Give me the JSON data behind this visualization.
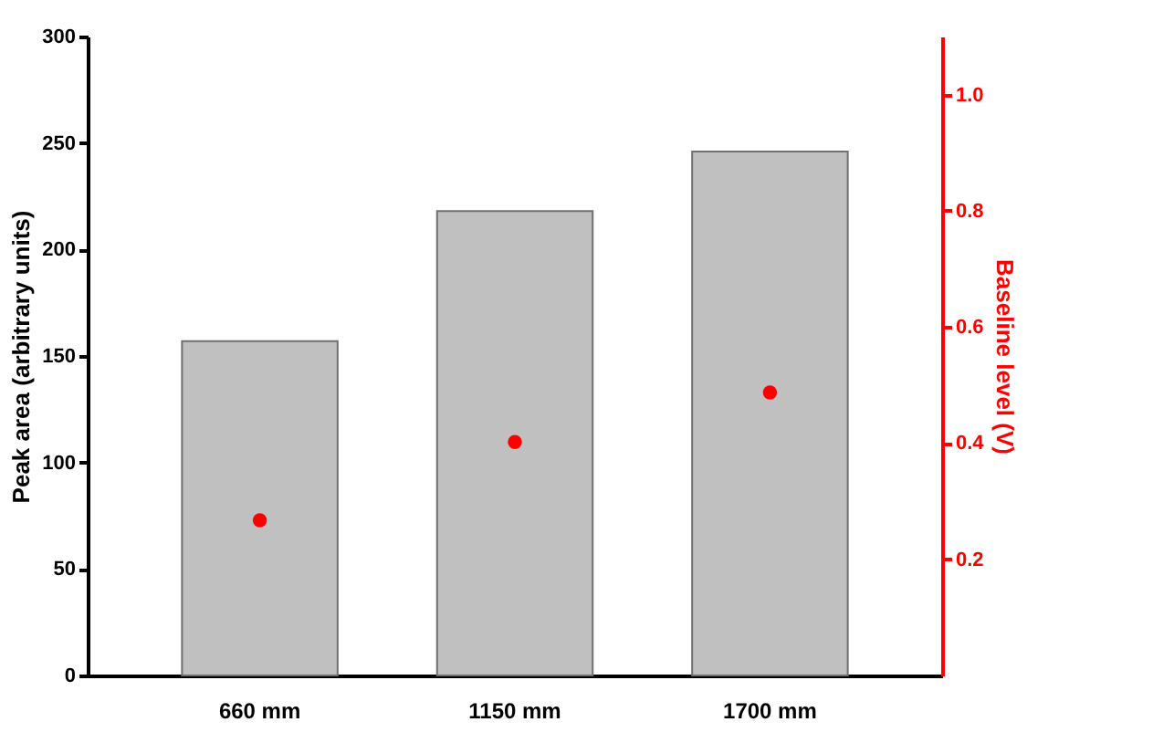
{
  "chart_data": {
    "type": "bar",
    "ylabel": "Peak area (arbitrary units)",
    "y2label": "Baseline level (V)",
    "categories": [
      "660 mm",
      "1150 mm",
      "1700 mm"
    ],
    "series": [
      {
        "color": "#c0c0c0",
        "values": [
          157,
          218,
          246
        ]
      },
      {
        "type": "scatter",
        "axis": "y2",
        "color": "#ff0000",
        "values": [
          0.267,
          0.402,
          0.487
        ]
      }
    ],
    "ylim": [
      0,
      300
    ],
    "yticks": [
      0,
      50,
      100,
      150,
      200,
      250,
      300
    ],
    "y2lim": [
      0,
      1.1
    ],
    "y2ticks": [
      0.2,
      0.4,
      0.6,
      0.8,
      {
        "value": 1.0,
        "label": "1.0"
      }
    ],
    "grid": false,
    "marker": "circle"
  }
}
